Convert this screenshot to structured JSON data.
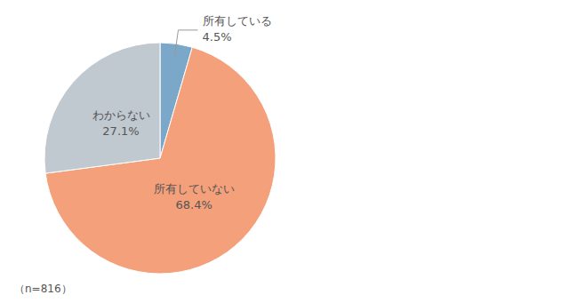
{
  "chart_data": {
    "type": "pie",
    "categories": [
      "所有している",
      "所有していない",
      "わからない"
    ],
    "values": [
      4.5,
      68.4,
      27.1
    ],
    "value_labels": [
      "4.5%",
      "68.4%",
      "27.1%"
    ],
    "data_labels": true,
    "colors": [
      "#7ba7c9",
      "#f4a07a",
      "#c0c8d0"
    ],
    "annotations": [
      "（n=816）"
    ]
  }
}
